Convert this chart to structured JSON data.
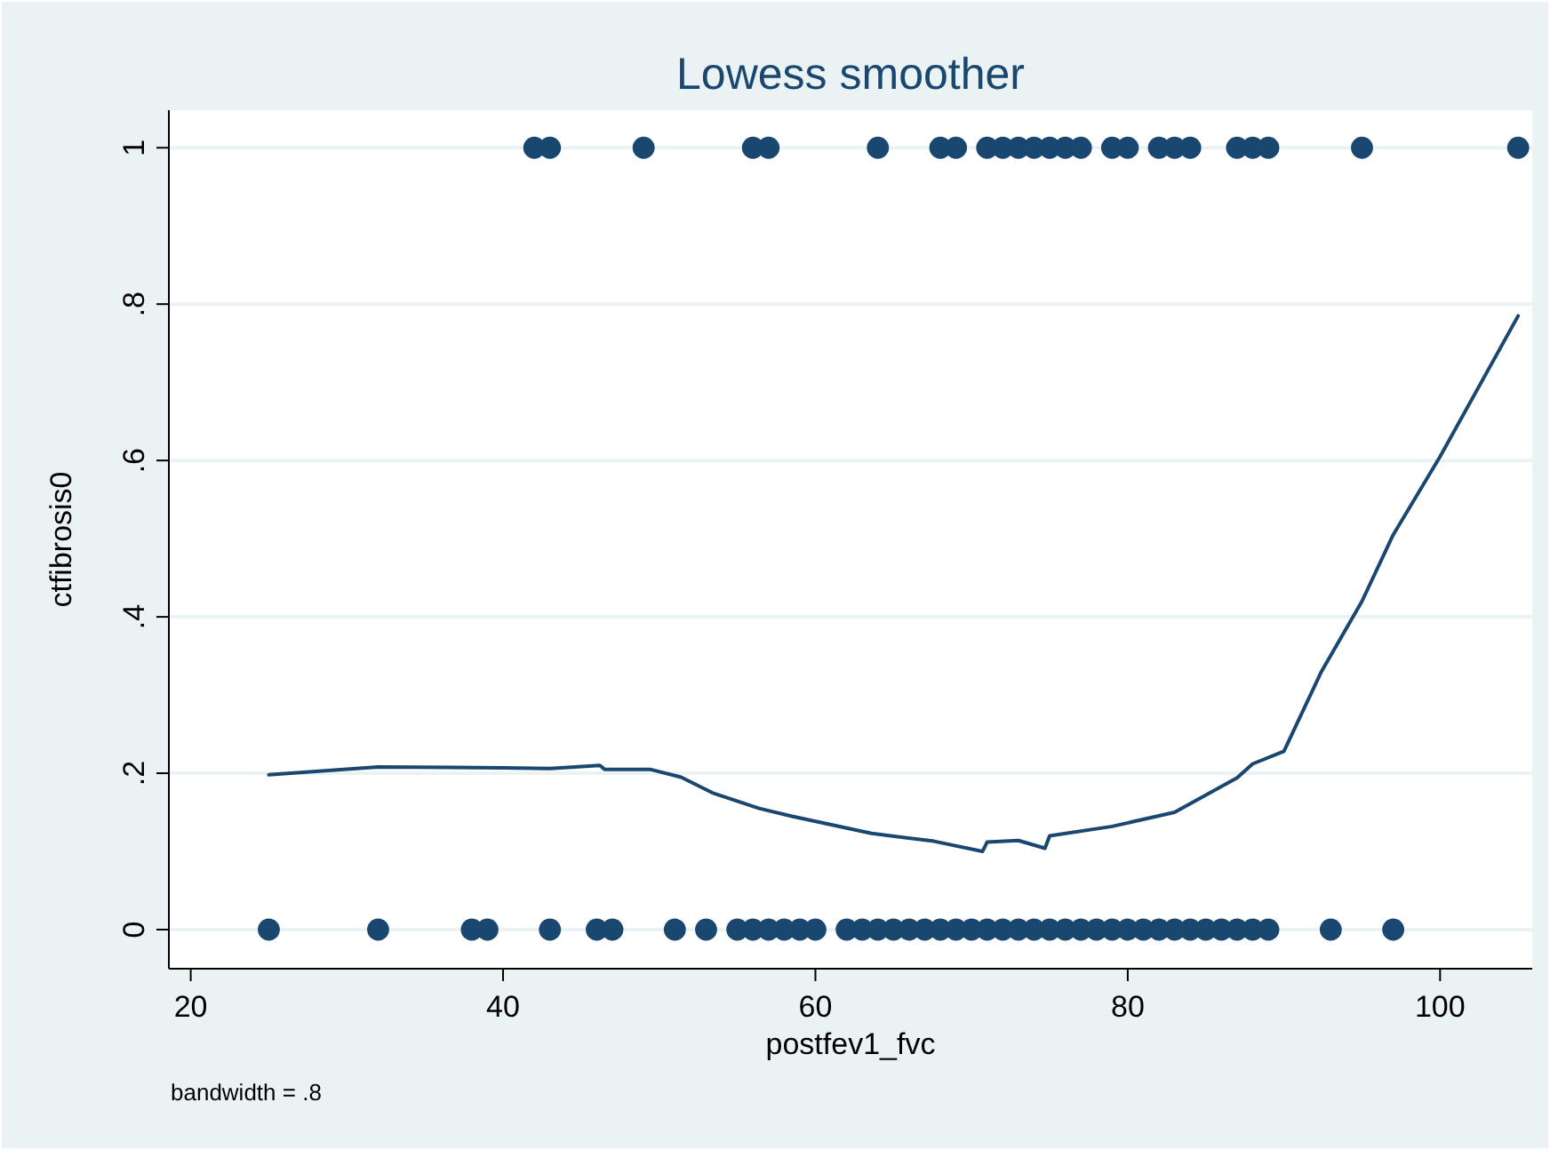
{
  "chart_data": {
    "type": "scatter",
    "title": "Lowess smoother",
    "xlabel": "postfev1_fvc",
    "ylabel": "ctfibrosis0",
    "annotations": [
      "bandwidth = .8"
    ],
    "xlim": [
      18.6,
      105.9
    ],
    "xticks": [
      20,
      40,
      60,
      80,
      100
    ],
    "ylim": [
      -0.05,
      1.048
    ],
    "yticks": [
      {
        "value": 0,
        "label": "0"
      },
      {
        "value": 0.2,
        "label": ".2"
      },
      {
        "value": 0.4,
        "label": ".4"
      },
      {
        "value": 0.6,
        "label": ".6"
      },
      {
        "value": 0.8,
        "label": ".8"
      },
      {
        "value": 1,
        "label": "1"
      }
    ],
    "grid": "y",
    "marker": "circle",
    "series": [
      {
        "color": "#1a476f",
        "x": [
          42,
          43,
          49,
          56,
          57,
          64,
          68,
          69,
          71,
          72,
          73,
          74,
          75,
          76,
          77,
          79,
          80,
          82,
          83,
          84,
          87,
          88,
          89,
          95,
          105,
          25,
          32,
          38,
          39,
          43,
          46,
          47,
          51,
          53,
          55,
          56,
          57,
          58,
          59,
          60,
          62,
          63,
          64,
          65,
          66,
          67,
          68,
          69,
          70,
          71,
          72,
          73,
          74,
          75,
          76,
          77,
          78,
          79,
          80,
          81,
          82,
          83,
          84,
          85,
          86,
          87,
          88,
          89,
          93,
          97
        ],
        "values": [
          1,
          1,
          1,
          1,
          1,
          1,
          1,
          1,
          1,
          1,
          1,
          1,
          1,
          1,
          1,
          1,
          1,
          1,
          1,
          1,
          1,
          1,
          1,
          1,
          1,
          0,
          0,
          0,
          0,
          0,
          0,
          0,
          0,
          0,
          0,
          0,
          0,
          0,
          0,
          0,
          0,
          0,
          0,
          0,
          0,
          0,
          0,
          0,
          0,
          0,
          0,
          0,
          0,
          0,
          0,
          0,
          0,
          0,
          0,
          0,
          0,
          0,
          0,
          0,
          0,
          0,
          0,
          0,
          0,
          0
        ]
      },
      {
        "type": "line",
        "color": "#1a476f",
        "marker": "none",
        "line_style": "solid",
        "x": [
          25,
          32,
          40,
          43,
          46.2,
          46.5,
          49.4,
          51.4,
          53.4,
          56.4,
          58.5,
          63.6,
          67.6,
          70.7,
          71,
          73,
          74.7,
          75,
          79,
          83,
          87,
          88,
          90,
          92.4,
          95,
          97,
          100,
          105
        ],
        "values": [
          0.198,
          0.208,
          0.207,
          0.206,
          0.21,
          0.205,
          0.205,
          0.195,
          0.175,
          0.155,
          0.145,
          0.123,
          0.113,
          0.1,
          0.112,
          0.114,
          0.104,
          0.12,
          0.132,
          0.15,
          0.194,
          0.212,
          0.228,
          0.33,
          0.42,
          0.505,
          0.605,
          0.785
        ]
      }
    ]
  }
}
